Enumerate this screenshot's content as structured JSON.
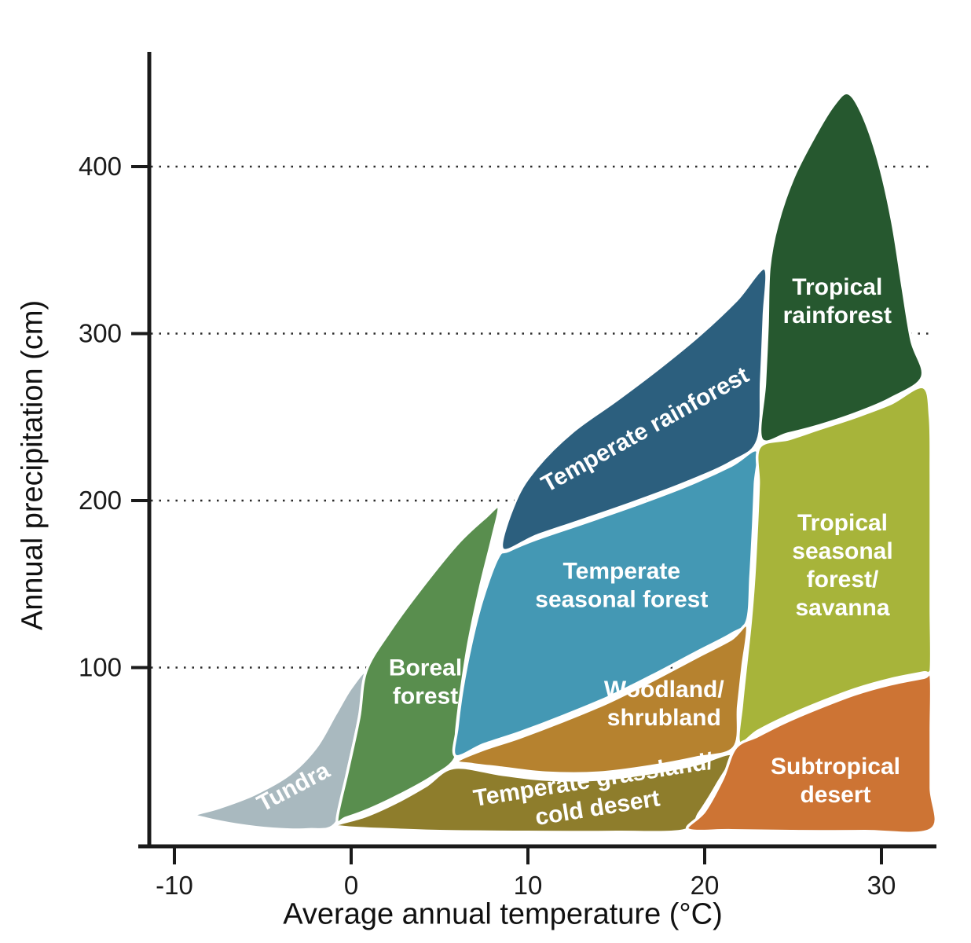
{
  "chart_data": {
    "type": "area",
    "title": "",
    "xlabel": "Average annual temperature (°C)",
    "ylabel": "Annual precipitation (cm)",
    "x_ticks": [
      -10,
      0,
      10,
      20,
      30
    ],
    "y_ticks": [
      100,
      200,
      300,
      400
    ],
    "xlim": [
      -11.4,
      32.8
    ],
    "ylim": [
      0,
      468
    ],
    "grid": "dotted horizontal lines at each y tick",
    "legend_position": "none",
    "label_color": "#ffffff",
    "axis_color": "#1a1a1a",
    "biomes": [
      {
        "name": "Tundra",
        "color": "#a9b9bf",
        "temp_range_c": [
          -9,
          1
        ],
        "precip_range_cm": [
          2,
          97
        ],
        "label": {
          "lines": [
            "Tundra"
          ],
          "pos": [
            -3.3,
            29
          ],
          "rotation": -28
        },
        "outline": [
          [
            -8.8,
            12
          ],
          [
            -7.5,
            16
          ],
          [
            -5.5,
            24
          ],
          [
            -3.5,
            36
          ],
          [
            -2.0,
            52
          ],
          [
            -0.9,
            72
          ],
          [
            0.0,
            88
          ],
          [
            0.85,
            97
          ],
          [
            0.45,
            70
          ],
          [
            -0.2,
            38
          ],
          [
            -0.85,
            7
          ],
          [
            -2.5,
            3
          ],
          [
            -4.5,
            3.5
          ],
          [
            -6.5,
            6
          ],
          [
            -8.2,
            9.5
          ]
        ]
      },
      {
        "name": "Boreal forest",
        "color": "#598e4e",
        "temp_range_c": [
          -1,
          8.5
        ],
        "precip_range_cm": [
          8,
          196
        ],
        "label": {
          "lines": [
            "Boreal",
            "forest"
          ],
          "pos": [
            4.2,
            92
          ],
          "rotation": 0
        },
        "outline": [
          [
            -0.8,
            9
          ],
          [
            -0.2,
            38
          ],
          [
            0.45,
            70
          ],
          [
            0.85,
            98
          ],
          [
            2.2,
            122
          ],
          [
            4.0,
            148
          ],
          [
            6.0,
            174
          ],
          [
            7.6,
            190
          ],
          [
            8.35,
            196
          ],
          [
            8.0,
            178
          ],
          [
            7.3,
            148
          ],
          [
            6.65,
            115
          ],
          [
            6.25,
            88
          ],
          [
            5.95,
            62
          ],
          [
            5.85,
            45
          ],
          [
            4.5,
            34
          ],
          [
            2.8,
            24
          ],
          [
            1.0,
            15
          ],
          [
            -0.3,
            10
          ]
        ]
      },
      {
        "name": "Temperate rainforest",
        "color": "#2c5f7e",
        "temp_range_c": [
          8.5,
          23.5
        ],
        "precip_range_cm": [
          170,
          340
        ],
        "label": {
          "lines": [
            "Temperate rainforest"
          ],
          "pos": [
            16.6,
            243
          ],
          "rotation": -29
        },
        "outline": [
          [
            8.55,
            171
          ],
          [
            9.3,
            200
          ],
          [
            10.5,
            220
          ],
          [
            12.5,
            241
          ],
          [
            15.0,
            260
          ],
          [
            17.5,
            280
          ],
          [
            19.8,
            300
          ],
          [
            21.8,
            320
          ],
          [
            23.4,
            339
          ],
          [
            23.35,
            310
          ],
          [
            23.2,
            272
          ],
          [
            23.0,
            236
          ],
          [
            21.5,
            223
          ],
          [
            19.0,
            211
          ],
          [
            16.0,
            199
          ],
          [
            13.0,
            188
          ],
          [
            10.5,
            179
          ]
        ]
      },
      {
        "name": "Temperate seasonal forest",
        "color": "#4498b4",
        "temp_range_c": [
          6,
          23
        ],
        "precip_range_cm": [
          45,
          232
        ],
        "label": {
          "lines": [
            "Temperate",
            "seasonal forest"
          ],
          "pos": [
            15.3,
            150
          ],
          "rotation": 0
        },
        "outline": [
          [
            8.3,
            166
          ],
          [
            7.4,
            140
          ],
          [
            6.8,
            115
          ],
          [
            6.3,
            88
          ],
          [
            6.0,
            64
          ],
          [
            5.9,
            47
          ],
          [
            7.5,
            54
          ],
          [
            9.5,
            61
          ],
          [
            12.0,
            71
          ],
          [
            14.5,
            82
          ],
          [
            17.0,
            95
          ],
          [
            19.5,
            109
          ],
          [
            21.5,
            120
          ],
          [
            22.4,
            128
          ],
          [
            22.6,
            155
          ],
          [
            22.75,
            185
          ],
          [
            22.85,
            210
          ],
          [
            22.95,
            230
          ],
          [
            21.5,
            221
          ],
          [
            19.0,
            209
          ],
          [
            16.0,
            197
          ],
          [
            13.0,
            186
          ],
          [
            10.5,
            177
          ],
          [
            8.9,
            170
          ]
        ]
      },
      {
        "name": "Woodland/shrubland",
        "color": "#b6822f",
        "temp_range_c": [
          6,
          22.5
        ],
        "precip_range_cm": [
          35,
          128
        ],
        "label": {
          "lines": [
            "Woodland/",
            "shrubland"
          ],
          "pos": [
            17.7,
            79
          ],
          "rotation": 0
        },
        "outline": [
          [
            6.0,
            44
          ],
          [
            7.5,
            51
          ],
          [
            9.5,
            58
          ],
          [
            12.0,
            68
          ],
          [
            14.5,
            79
          ],
          [
            17.0,
            92
          ],
          [
            19.5,
            106
          ],
          [
            21.5,
            117
          ],
          [
            22.4,
            125
          ],
          [
            22.15,
            101
          ],
          [
            21.9,
            77
          ],
          [
            21.65,
            52
          ],
          [
            19.5,
            46
          ],
          [
            17.0,
            41
          ],
          [
            14.0,
            37
          ],
          [
            11.0,
            37
          ],
          [
            8.5,
            40
          ],
          [
            6.9,
            42
          ]
        ]
      },
      {
        "name": "Temperate grassland/cold desert",
        "color": "#8e7d2c",
        "temp_range_c": [
          -1,
          21.5
        ],
        "precip_range_cm": [
          1,
          48
        ],
        "label": {
          "lines": [
            "Temperate grassland/",
            "cold desert"
          ],
          "pos": [
            13.8,
            25
          ],
          "rotation": -9
        },
        "outline": [
          [
            -0.85,
            6
          ],
          [
            0.8,
            11
          ],
          [
            2.5,
            19
          ],
          [
            4.2,
            29
          ],
          [
            5.8,
            40
          ],
          [
            8.5,
            36
          ],
          [
            11.0,
            33
          ],
          [
            14.0,
            33
          ],
          [
            17.0,
            37
          ],
          [
            19.5,
            42
          ],
          [
            21.55,
            48
          ],
          [
            20.7,
            30
          ],
          [
            19.7,
            13
          ],
          [
            18.85,
            2.5
          ],
          [
            15.0,
            1.5
          ],
          [
            10.0,
            1.5
          ],
          [
            5.0,
            2
          ],
          [
            1.0,
            3.5
          ],
          [
            -0.5,
            4.5
          ]
        ]
      },
      {
        "name": "Tropical rainforest",
        "color": "#26582f",
        "temp_range_c": [
          23,
          32.5
        ],
        "precip_range_cm": [
          237,
          444
        ],
        "label": {
          "lines": [
            "Tropical",
            "rainforest"
          ],
          "pos": [
            27.5,
            320
          ],
          "rotation": 0
        },
        "outline": [
          [
            23.2,
            237
          ],
          [
            23.4,
            270
          ],
          [
            23.55,
            305
          ],
          [
            23.65,
            339
          ],
          [
            24.1,
            365
          ],
          [
            25.0,
            393
          ],
          [
            26.2,
            418
          ],
          [
            27.3,
            437
          ],
          [
            28.1,
            444
          ],
          [
            28.9,
            432
          ],
          [
            29.8,
            405
          ],
          [
            30.6,
            368
          ],
          [
            31.2,
            328
          ],
          [
            31.7,
            296
          ],
          [
            32.3,
            274
          ],
          [
            30.5,
            261
          ],
          [
            28.5,
            252
          ],
          [
            26.5,
            245
          ],
          [
            24.7,
            240
          ]
        ]
      },
      {
        "name": "Tropical seasonal forest/savanna",
        "color": "#a7b43a",
        "temp_range_c": [
          21.7,
          32.8
        ],
        "precip_range_cm": [
          55,
          268
        ],
        "label": {
          "lines": [
            "Tropical",
            "seasonal",
            "forest/",
            "savanna"
          ],
          "pos": [
            27.8,
            162
          ],
          "rotation": 0
        },
        "outline": [
          [
            23.1,
            232
          ],
          [
            23.05,
            210
          ],
          [
            22.95,
            185
          ],
          [
            22.8,
            155
          ],
          [
            22.6,
            128
          ],
          [
            22.35,
            103
          ],
          [
            22.1,
            78
          ],
          [
            21.95,
            55
          ],
          [
            23.0,
            62
          ],
          [
            24.5,
            70
          ],
          [
            26.5,
            79
          ],
          [
            28.5,
            87
          ],
          [
            30.5,
            93
          ],
          [
            32.4,
            97
          ],
          [
            32.8,
            98
          ],
          [
            32.8,
            135
          ],
          [
            32.8,
            175
          ],
          [
            32.8,
            215
          ],
          [
            32.75,
            250
          ],
          [
            32.35,
            268
          ],
          [
            30.5,
            258
          ],
          [
            28.5,
            250
          ],
          [
            26.5,
            243
          ],
          [
            24.8,
            237
          ]
        ]
      },
      {
        "name": "Subtropical desert",
        "color": "#cd7434",
        "temp_range_c": [
          19,
          32.8
        ],
        "precip_range_cm": [
          2,
          95
        ],
        "label": {
          "lines": [
            "Subtropical",
            "desert"
          ],
          "pos": [
            27.4,
            33
          ],
          "rotation": 0
        },
        "outline": [
          [
            19.05,
            3
          ],
          [
            20.0,
            14
          ],
          [
            21.0,
            33
          ],
          [
            21.75,
            52
          ],
          [
            23.0,
            59
          ],
          [
            24.5,
            67
          ],
          [
            26.5,
            76
          ],
          [
            28.5,
            84
          ],
          [
            30.5,
            90
          ],
          [
            32.4,
            94
          ],
          [
            32.8,
            95
          ],
          [
            32.8,
            62
          ],
          [
            32.8,
            28
          ],
          [
            32.8,
            3
          ],
          [
            29.0,
            2
          ],
          [
            25.0,
            2
          ],
          [
            21.5,
            2.5
          ]
        ]
      }
    ]
  }
}
